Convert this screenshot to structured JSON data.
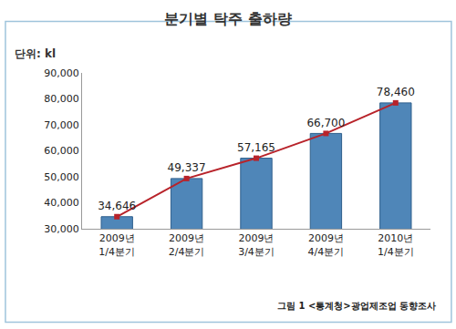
{
  "chart_data": {
    "type": "bar",
    "title": "분기별 탁주 출하량",
    "ylabel": "단위: kl",
    "annotation": "그림 1 <통계청>광업제조업 동향조사",
    "categories": [
      "2009년\n1/4분기",
      "2009년\n2/4분기",
      "2009년\n3/4분기",
      "2009년\n4/4분기",
      "2010년\n1/4분기"
    ],
    "series": [
      {
        "type": "bar",
        "color": "#4f86b8",
        "values": [
          34646,
          49337,
          57165,
          66700,
          78460
        ]
      },
      {
        "type": "line",
        "color": "#b8232a",
        "marker": "square",
        "values": [
          34646,
          49337,
          57165,
          66700,
          78460
        ],
        "value_labels": [
          "34,646",
          "49,337",
          "57,165",
          "66,700",
          "78,460"
        ]
      }
    ],
    "data_labels": true,
    "ylim": [
      30000,
      90000
    ],
    "yticks": [
      {
        "value": 30000,
        "label": "30,000"
      },
      {
        "value": 40000,
        "label": "40,000"
      },
      {
        "value": 50000,
        "label": "50,000"
      },
      {
        "value": 60000,
        "label": "60,000"
      },
      {
        "value": 70000,
        "label": "70,000"
      },
      {
        "value": 80000,
        "label": "80,000"
      },
      {
        "value": 90000,
        "label": "90,000"
      }
    ],
    "grid": false
  }
}
